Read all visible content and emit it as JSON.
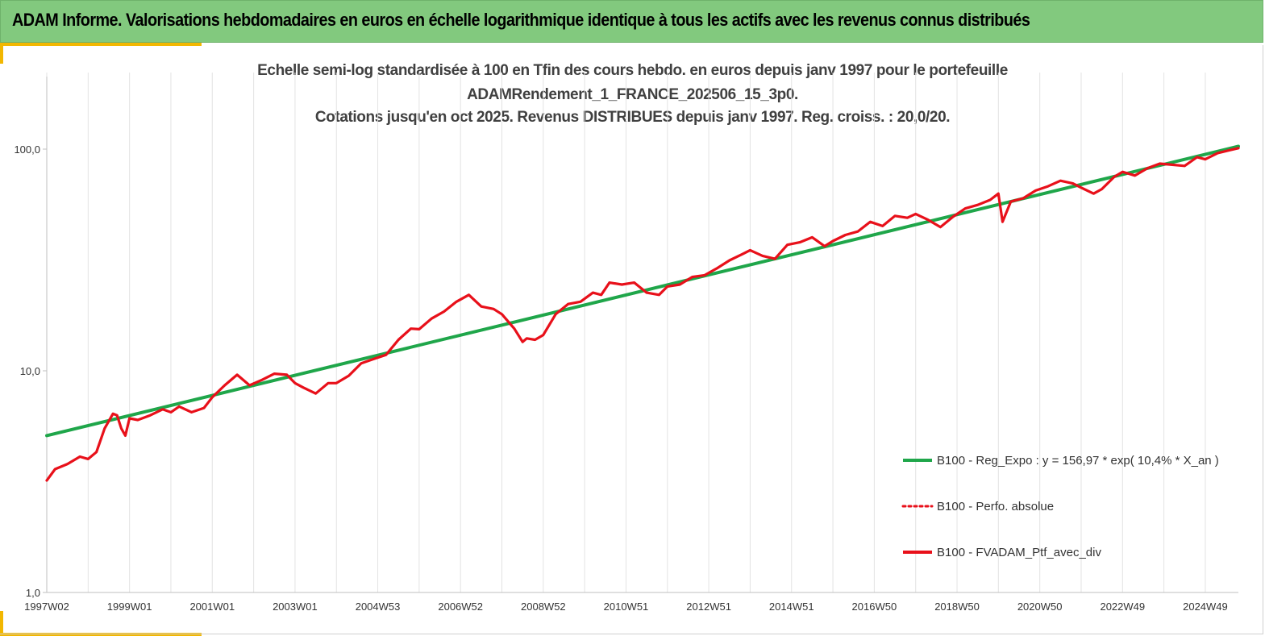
{
  "header": {
    "title": "ADAM Informe. Valorisations hebdomadaires en euros en échelle logarithmique identique à tous les actifs avec les revenus connus distribués"
  },
  "colors": {
    "header_bg": "#82c97e",
    "accent": "#f2b701",
    "regression": "#1fa64a",
    "portfolio": "#e8101a"
  },
  "chart_data": {
    "type": "line",
    "title_lines": [
      "Echelle semi-log standardisée à 100 en Tfin des cours hebdo.  en euros depuis janv 1997 pour le portefeuille",
      "ADAMRendement_1_FRANCE_202506_15_3p0.",
      "Cotations  jusqu'en oct 2025. Revenus DISTRIBUES depuis janv 1997. Reg. croiss.  : 20,0/20."
    ],
    "y_scale": "log",
    "y_range": [
      1,
      100
    ],
    "y_ticks": [
      "1,0",
      "10,0",
      "100,0"
    ],
    "x_range": [
      1997.0,
      2025.8
    ],
    "x_ticks": [
      "1997W02",
      "1999W01",
      "2001W01",
      "2003W01",
      "2004W53",
      "2006W52",
      "2008W52",
      "2010W51",
      "2012W51",
      "2014W51",
      "2016W50",
      "2018W50",
      "2020W50",
      "2022W49",
      "2024W49"
    ],
    "x_tick_years": [
      1997.0,
      1999.0,
      2001.0,
      2003.0,
      2005.0,
      2007.0,
      2009.0,
      2011.0,
      2013.0,
      2015.0,
      2017.0,
      2019.0,
      2021.0,
      2023.0,
      2025.0
    ],
    "grid": "vertical",
    "legend_position": "bottom-right",
    "series": [
      {
        "name": "B100 - Reg_Expo : y = 156,97 * exp( 10,4% *  X_an )",
        "style": "solid",
        "color": "#1fa64a",
        "x": [
          1997.0,
          2025.8
        ],
        "y": [
          5.1,
          103
        ]
      },
      {
        "name": "B100 - Perfo. absolue",
        "style": "dotted",
        "color": "#e8101a",
        "x": [],
        "y": []
      },
      {
        "name": "B100 - FVADAM_Ptf_avec_div",
        "style": "solid",
        "color": "#e8101a",
        "x": [
          1997.0,
          1997.2,
          1997.5,
          1997.8,
          1998.0,
          1998.2,
          1998.4,
          1998.6,
          1998.7,
          1998.8,
          1998.9,
          1999.0,
          1999.2,
          1999.5,
          1999.8,
          2000.0,
          2000.2,
          2000.5,
          2000.8,
          2001.0,
          2001.3,
          2001.6,
          2001.9,
          2002.2,
          2002.5,
          2002.8,
          2003.0,
          2003.2,
          2003.5,
          2003.8,
          2004.0,
          2004.3,
          2004.6,
          2004.9,
          2005.2,
          2005.5,
          2005.8,
          2006.0,
          2006.3,
          2006.6,
          2006.9,
          2007.2,
          2007.5,
          2007.8,
          2008.0,
          2008.3,
          2008.5,
          2008.6,
          2008.8,
          2009.0,
          2009.3,
          2009.6,
          2009.9,
          2010.2,
          2010.4,
          2010.6,
          2010.9,
          2011.2,
          2011.5,
          2011.8,
          2012.0,
          2012.3,
          2012.6,
          2012.9,
          2013.2,
          2013.5,
          2013.8,
          2014.0,
          2014.3,
          2014.6,
          2014.9,
          2015.2,
          2015.5,
          2015.8,
          2016.0,
          2016.3,
          2016.6,
          2016.9,
          2017.2,
          2017.5,
          2017.8,
          2018.0,
          2018.3,
          2018.6,
          2018.9,
          2019.2,
          2019.5,
          2019.8,
          2020.0,
          2020.1,
          2020.3,
          2020.6,
          2020.9,
          2021.2,
          2021.5,
          2021.8,
          2022.0,
          2022.3,
          2022.5,
          2022.8,
          2023.0,
          2023.3,
          2023.6,
          2023.9,
          2024.2,
          2024.5,
          2024.8,
          2025.0,
          2025.3,
          2025.6,
          2025.8
        ],
        "y": [
          3.2,
          3.6,
          3.8,
          4.1,
          4.0,
          4.3,
          5.5,
          6.4,
          6.3,
          5.5,
          5.1,
          6.1,
          6.0,
          6.3,
          6.7,
          6.5,
          6.9,
          6.5,
          6.8,
          7.6,
          8.6,
          9.6,
          8.6,
          9.1,
          9.7,
          9.6,
          8.8,
          8.4,
          7.9,
          8.8,
          8.8,
          9.5,
          10.8,
          11.3,
          11.8,
          13.8,
          15.5,
          15.4,
          17.2,
          18.5,
          20.5,
          22.0,
          19.5,
          19.0,
          18.0,
          15.5,
          13.5,
          14.0,
          13.8,
          14.5,
          18.0,
          20.0,
          20.5,
          22.5,
          22.0,
          25.0,
          24.5,
          25.0,
          22.5,
          22.0,
          24.0,
          24.5,
          26.5,
          27.0,
          29.0,
          31.5,
          33.5,
          35.0,
          33.0,
          32.0,
          37.0,
          38.0,
          40.0,
          36.5,
          38.5,
          41.0,
          42.5,
          47.0,
          45.0,
          50.0,
          49.0,
          51.0,
          48.0,
          44.5,
          49.5,
          54.0,
          56.0,
          59.0,
          63.0,
          47.0,
          58.0,
          60.0,
          65.0,
          68.0,
          72.0,
          70.0,
          67.0,
          63.0,
          66.0,
          75.0,
          79.0,
          76.0,
          82.0,
          86.0,
          85.0,
          84.0,
          92.0,
          90.0,
          96.0,
          99.0,
          101.0
        ]
      }
    ]
  }
}
